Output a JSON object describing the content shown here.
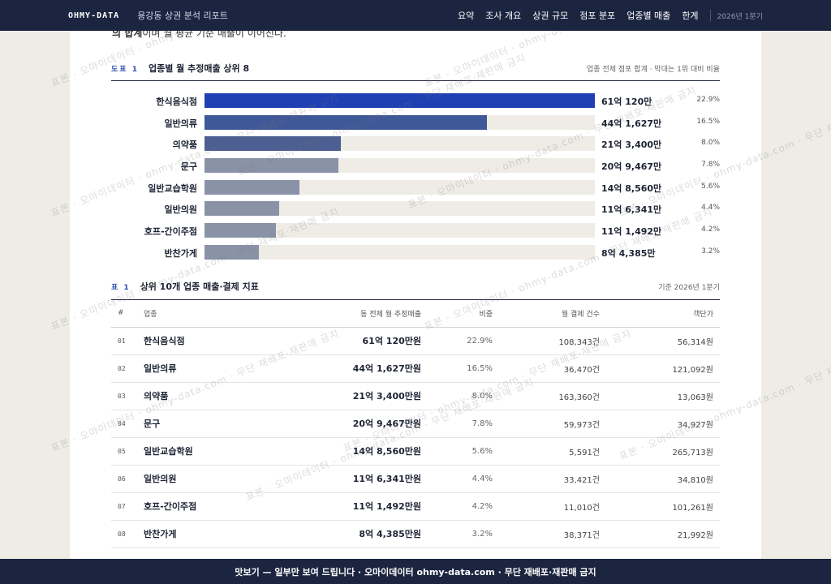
{
  "nav": {
    "brand": "OHMY-DATA",
    "title": "용강동 상권 분석 리포트",
    "links": [
      "요약",
      "조사 개요",
      "상권 규모",
      "점포 분포",
      "업종별 매출",
      "한계"
    ],
    "date": "2026년 1분기"
  },
  "intro": {
    "bold": "의 합계",
    "rest": "이며 월 평균 기준 매출이 이어진다."
  },
  "figure": {
    "tag": "도표 1",
    "title": "업종별 월 추정매출 상위 8",
    "note": "업종 전체 점포 합계 · 막대는 1위 대비 비율"
  },
  "chart_data": {
    "type": "bar",
    "title": "업종별 월 추정매출 상위 8",
    "categories": [
      "한식음식점",
      "일반의류",
      "의약품",
      "문구",
      "일반교습학원",
      "일반의원",
      "호프-간이주점",
      "반찬가게"
    ],
    "values": [
      6101200000,
      4416270000,
      2134000000,
      2094670000,
      1485600000,
      1163410000,
      1114920000,
      843850000
    ],
    "value_labels": [
      "61억 120만",
      "44억 1,627만",
      "21억 3,400만",
      "20억 9,467만",
      "14억 8,560만",
      "11억 6,341만",
      "11억 1,492만",
      "8억 4,385만"
    ],
    "shares": [
      "22.9%",
      "16.5%",
      "8.0%",
      "7.8%",
      "5.6%",
      "4.4%",
      "4.2%",
      "3.2%"
    ],
    "colors": [
      "#1f40b3",
      "#3f5897",
      "#4c5f92",
      "#8a92a8",
      "#8a92a8",
      "#8a92a8",
      "#8a92a8",
      "#8a92a8"
    ],
    "orientation": "horizontal"
  },
  "table": {
    "tag": "표 1",
    "title": "상위 10개 업종 매출·결제 지표",
    "note": "기준 2026년 1분기",
    "headers": [
      "#",
      "업종",
      "동 전체 월 추정매출",
      "비중",
      "월 결제 건수",
      "객단가"
    ],
    "rows": [
      {
        "num": "01",
        "name": "한식음식점",
        "sales": "61억 120만원",
        "share": "22.9%",
        "count": "108,343건",
        "price": "56,314원"
      },
      {
        "num": "02",
        "name": "일반의류",
        "sales": "44억 1,627만원",
        "share": "16.5%",
        "count": "36,470건",
        "price": "121,092원"
      },
      {
        "num": "03",
        "name": "의약품",
        "sales": "21억 3,400만원",
        "share": "8.0%",
        "count": "163,360건",
        "price": "13,063원"
      },
      {
        "num": "04",
        "name": "문구",
        "sales": "20억 9,467만원",
        "share": "7.8%",
        "count": "59,973건",
        "price": "34,927원"
      },
      {
        "num": "05",
        "name": "일반교습학원",
        "sales": "14억 8,560만원",
        "share": "5.6%",
        "count": "5,591건",
        "price": "265,713원"
      },
      {
        "num": "06",
        "name": "일반의원",
        "sales": "11억 6,341만원",
        "share": "4.4%",
        "count": "33,421건",
        "price": "34,810원"
      },
      {
        "num": "07",
        "name": "호프-간이주점",
        "sales": "11억 1,492만원",
        "share": "4.2%",
        "count": "11,010건",
        "price": "101,261원"
      },
      {
        "num": "08",
        "name": "반찬가게",
        "sales": "8억 4,385만원",
        "share": "3.2%",
        "count": "38,371건",
        "price": "21,992원"
      }
    ]
  },
  "watermark": "표본 · 오마이데이터 · ohmy-data.com · 무단 재배포·재판매 금지",
  "footer": "맛보기 — 일부만 보여 드립니다 · 오마이데이터 ohmy-data.com · 무단 재배포·재판매 금지"
}
